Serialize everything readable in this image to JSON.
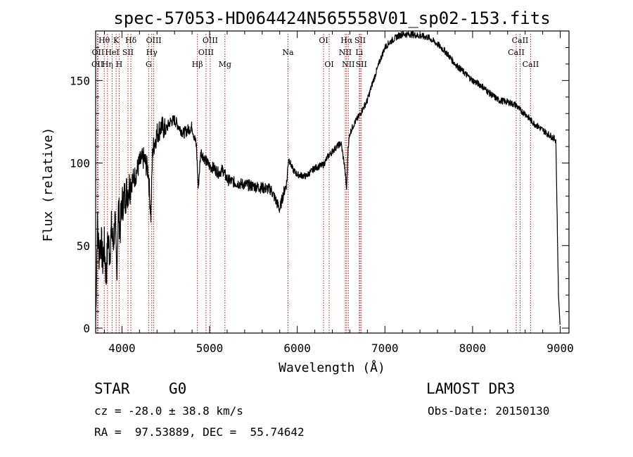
{
  "chart_data": {
    "type": "line",
    "title": "spec-57053-HD064424N565558V01_sp02-153.fits",
    "xlabel": "Wavelength (Å)",
    "ylabel": "Flux (relative)",
    "xlim": [
      3700,
      9100
    ],
    "ylim": [
      -3,
      180
    ],
    "x_ticks": [
      4000,
      5000,
      6000,
      7000,
      8000,
      9000
    ],
    "y_ticks": [
      0,
      50,
      100,
      150
    ],
    "grid": false,
    "series": [
      {
        "x": [
          3700,
          3720,
          3740,
          3760,
          3780,
          3800,
          3820,
          3840,
          3860,
          3880,
          3900,
          3920,
          3940,
          3960,
          3980,
          4000,
          4050,
          4100,
          4150,
          4200,
          4250,
          4300,
          4330,
          4350,
          4400,
          4450,
          4500,
          4550,
          4600,
          4650,
          4700,
          4750,
          4800,
          4850,
          4870,
          4900,
          4950,
          5000,
          5050,
          5100,
          5150,
          5200,
          5300,
          5400,
          5500,
          5600,
          5700,
          5750,
          5800,
          5850,
          5880,
          5900,
          5950,
          6000,
          6100,
          6200,
          6300,
          6350,
          6400,
          6450,
          6500,
          6540,
          6563,
          6580,
          6600,
          6650,
          6700,
          6750,
          6800,
          6850,
          6900,
          6950,
          7000,
          7050,
          7100,
          7150,
          7200,
          7300,
          7400,
          7500,
          7600,
          7700,
          7800,
          7900,
          8000,
          8100,
          8200,
          8300,
          8400,
          8500,
          8542,
          8600,
          8662,
          8700,
          8800,
          8850,
          8900,
          8950,
          8980,
          9000
        ],
        "y": [
          5,
          62,
          45,
          55,
          40,
          50,
          30,
          55,
          45,
          60,
          50,
          65,
          35,
          72,
          60,
          75,
          82,
          88,
          92,
          100,
          103,
          95,
          68,
          108,
          118,
          122,
          120,
          125,
          126,
          122,
          118,
          120,
          122,
          110,
          85,
          107,
          102,
          98,
          97,
          94,
          96,
          90,
          88,
          87,
          86,
          85,
          84,
          78,
          72,
          83,
          88,
          103,
          96,
          93,
          92,
          97,
          99,
          104,
          107,
          110,
          112,
          98,
          84,
          110,
          118,
          124,
          128,
          133,
          138,
          147,
          155,
          163,
          170,
          173,
          175,
          177,
          178,
          178,
          177,
          176,
          172,
          167,
          160,
          155,
          150,
          147,
          142,
          138,
          137,
          135,
          132,
          130,
          126,
          124,
          120,
          118,
          116,
          114,
          20,
          0
        ],
        "label_key": ""
      }
    ],
    "line_markers": [
      {
        "label": "CII",
        "wl": 3720,
        "row": 2
      },
      {
        "label": "OII",
        "wl": 3727,
        "row": 1
      },
      {
        "label": "Hθ",
        "wl": 3798,
        "row": 0
      },
      {
        "label": "Hη",
        "wl": 3835,
        "row": 2
      },
      {
        "label": "HeI",
        "wl": 3889,
        "row": 1
      },
      {
        "label": "H",
        "wl": 3968,
        "row": 2
      },
      {
        "label": "K",
        "wl": 3934,
        "row": 0
      },
      {
        "label": "SII",
        "wl": 4069,
        "row": 1
      },
      {
        "label": "Hδ",
        "wl": 4102,
        "row": 0
      },
      {
        "label": "G",
        "wl": 4305,
        "row": 2
      },
      {
        "label": "Hγ",
        "wl": 4340,
        "row": 1
      },
      {
        "label": "OIII",
        "wl": 4363,
        "row": 0
      },
      {
        "label": "Hβ",
        "wl": 4861,
        "row": 2
      },
      {
        "label": "OIII",
        "wl": 4959,
        "row": 1
      },
      {
        "label": "OIII",
        "wl": 5007,
        "row": 0
      },
      {
        "label": "Mg",
        "wl": 5175,
        "row": 2
      },
      {
        "label": "Na",
        "wl": 5894,
        "row": 1
      },
      {
        "label": "OI",
        "wl": 6300,
        "row": 0
      },
      {
        "label": "OI",
        "wl": 6364,
        "row": 2
      },
      {
        "label": "NII",
        "wl": 6548,
        "row": 1
      },
      {
        "label": "Hα",
        "wl": 6563,
        "row": 0
      },
      {
        "label": "NII",
        "wl": 6583,
        "row": 2
      },
      {
        "label": "SII",
        "wl": 6717,
        "row": 0
      },
      {
        "label": "Li",
        "wl": 6707,
        "row": 1
      },
      {
        "label": "SII",
        "wl": 6731,
        "row": 2
      },
      {
        "label": "CaII",
        "wl": 8498,
        "row": 1
      },
      {
        "label": "CaII",
        "wl": 8542,
        "row": 0
      },
      {
        "label": "CaII",
        "wl": 8662,
        "row": 2
      }
    ],
    "colors": {
      "spectrum": "#000000",
      "marker_lines": "#b22222",
      "axes": "#000000"
    }
  },
  "info": {
    "object_class": "STAR",
    "subclass": "G0",
    "survey": "LAMOST DR3",
    "cz": "cz = -28.0 ± 38.8 km/s",
    "obs_date": "Obs-Date: 20150130",
    "coords": "RA =  97.53889, DEC =  55.74642"
  }
}
